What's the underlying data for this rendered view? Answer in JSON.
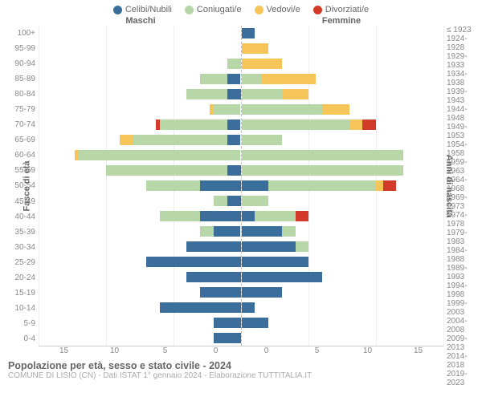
{
  "legend": [
    {
      "label": "Celibi/Nubili",
      "color": "#3b6e9b"
    },
    {
      "label": "Coniugati/e",
      "color": "#b7d7a8"
    },
    {
      "label": "Vedovi/e",
      "color": "#f6c55a"
    },
    {
      "label": "Divorziati/e",
      "color": "#d23b2a"
    }
  ],
  "headers": {
    "left": "Maschi",
    "right": "Femmine"
  },
  "axis_titles": {
    "left": "Fasce di età",
    "right": "Anni di nascita"
  },
  "x_axis": {
    "max": 15,
    "ticks": [
      0,
      5,
      10,
      15
    ]
  },
  "age_labels": [
    "100+",
    "95-99",
    "90-94",
    "85-89",
    "80-84",
    "75-79",
    "70-74",
    "65-69",
    "60-64",
    "55-59",
    "50-54",
    "45-49",
    "40-44",
    "35-39",
    "30-34",
    "25-29",
    "20-24",
    "15-19",
    "10-14",
    "5-9",
    "0-4"
  ],
  "birth_labels": [
    "≤ 1923",
    "1924-1928",
    "1929-1933",
    "1934-1938",
    "1939-1943",
    "1944-1948",
    "1949-1953",
    "1954-1958",
    "1959-1963",
    "1964-1968",
    "1969-1973",
    "1974-1978",
    "1979-1983",
    "1984-1988",
    "1989-1993",
    "1994-1998",
    "1999-2003",
    "2004-2008",
    "2009-2013",
    "2014-2018",
    "2019-2023"
  ],
  "rows": [
    {
      "m": [
        0,
        0,
        0,
        0
      ],
      "f": [
        1,
        0,
        0,
        0
      ]
    },
    {
      "m": [
        0,
        0,
        0,
        0
      ],
      "f": [
        0,
        0,
        2,
        0
      ]
    },
    {
      "m": [
        0,
        1,
        0,
        0
      ],
      "f": [
        0,
        0,
        3,
        0
      ]
    },
    {
      "m": [
        1,
        2,
        0,
        0
      ],
      "f": [
        0,
        1.5,
        4,
        0
      ]
    },
    {
      "m": [
        1,
        3,
        0,
        0
      ],
      "f": [
        0,
        3,
        2,
        0
      ]
    },
    {
      "m": [
        0,
        2,
        0.3,
        0
      ],
      "f": [
        0,
        6,
        2,
        0
      ]
    },
    {
      "m": [
        1,
        5,
        0,
        0.3
      ],
      "f": [
        0,
        8,
        1,
        1
      ]
    },
    {
      "m": [
        1,
        7,
        1,
        0
      ],
      "f": [
        0,
        3,
        0,
        0
      ]
    },
    {
      "m": [
        0,
        12,
        0.3,
        0
      ],
      "f": [
        0,
        12,
        0,
        0
      ]
    },
    {
      "m": [
        1,
        9,
        0,
        0
      ],
      "f": [
        0,
        12,
        0,
        0
      ]
    },
    {
      "m": [
        3,
        4,
        0,
        0
      ],
      "f": [
        2,
        8,
        0.5,
        1
      ]
    },
    {
      "m": [
        1,
        1,
        0,
        0
      ],
      "f": [
        0,
        2,
        0,
        0
      ]
    },
    {
      "m": [
        3,
        3,
        0,
        0
      ],
      "f": [
        1,
        3,
        0,
        1
      ]
    },
    {
      "m": [
        2,
        1,
        0,
        0
      ],
      "f": [
        3,
        1,
        0,
        0
      ]
    },
    {
      "m": [
        4,
        0,
        0,
        0
      ],
      "f": [
        4,
        1,
        0,
        0
      ]
    },
    {
      "m": [
        7,
        0,
        0,
        0
      ],
      "f": [
        5,
        0,
        0,
        0
      ]
    },
    {
      "m": [
        4,
        0,
        0,
        0
      ],
      "f": [
        6,
        0,
        0,
        0
      ]
    },
    {
      "m": [
        3,
        0,
        0,
        0
      ],
      "f": [
        3,
        0,
        0,
        0
      ]
    },
    {
      "m": [
        6,
        0,
        0,
        0
      ],
      "f": [
        1,
        0,
        0,
        0
      ]
    },
    {
      "m": [
        2,
        0,
        0,
        0
      ],
      "f": [
        2,
        0,
        0,
        0
      ]
    },
    {
      "m": [
        2,
        0,
        0,
        0
      ],
      "f": [
        0,
        0,
        0,
        0
      ]
    }
  ],
  "colors": [
    "#3b6e9b",
    "#b7d7a8",
    "#f6c55a",
    "#d23b2a"
  ],
  "footer": {
    "title": "Popolazione per età, sesso e stato civile - 2024",
    "subtitle": "COMUNE DI LISIO (CN) - Dati ISTAT 1° gennaio 2024 - Elaborazione TUTTITALIA.IT"
  }
}
